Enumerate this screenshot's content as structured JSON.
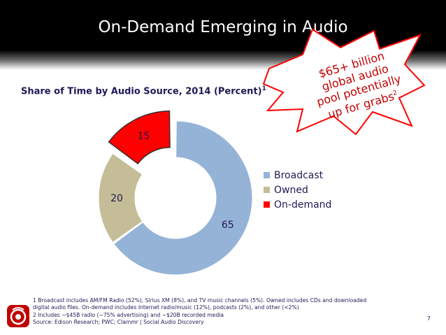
{
  "slide": {
    "title": "On-Demand Emerging in Audio",
    "page_number": "7"
  },
  "callout": {
    "line1": "$65+ billion",
    "line2": "global audio",
    "line3": "pool potentially",
    "line4": "up for grabs",
    "superscript": "2"
  },
  "footnotes": [
    "1 Broadcast includes AM/FM Radio (52%), Sirius XM (8%), and TV music channels (5%). Owned includes CDs and downloaded",
    "digital audio files. On-demand includes Internet radio/music (12%), podcasts (2%), and other (<2%)",
    "2 Includes ~$45B radio (~75% advertising) and ~$20B recorded media",
    "Source: Edison Research; PWC; Clammr | Social Audio Discovery"
  ],
  "colors": {
    "broadcast": "#95b3d7",
    "owned": "#c4bd97",
    "on_demand": "#ff0000",
    "title_text": "#ffffff",
    "body_text": "#1f1a55",
    "callout_text": "#c00000"
  },
  "chart_data": {
    "type": "pie",
    "style": "donut",
    "title": "Share of Time by Audio Source, 2014 (Percent)",
    "title_superscript": "1",
    "categories": [
      "Broadcast",
      "Owned",
      "On-demand"
    ],
    "values": [
      65,
      20,
      15
    ],
    "exploded": [
      "On-demand"
    ],
    "legend_position": "right"
  }
}
